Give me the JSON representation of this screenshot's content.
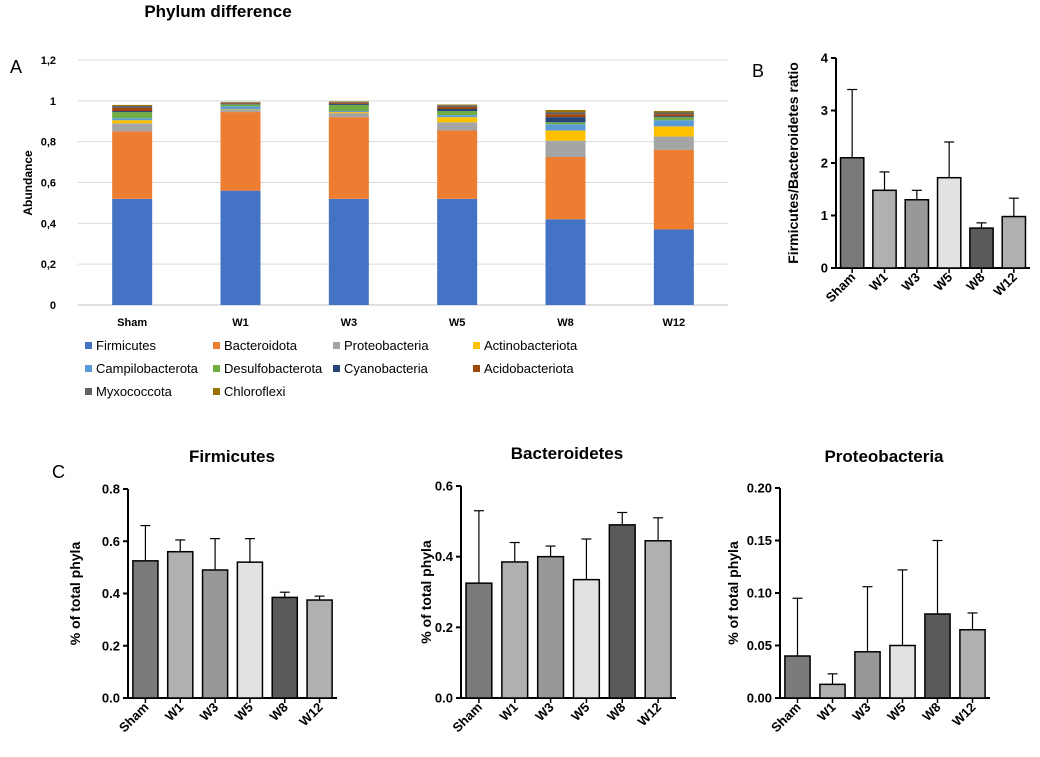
{
  "figure": {
    "panel_labels": {
      "a": "A",
      "b": "B",
      "c": "C"
    }
  },
  "chart_data": [
    {
      "id": "A",
      "type": "bar",
      "stacked": true,
      "title": "Phylum difference",
      "xlabel": "",
      "ylabel": "Abundance",
      "ylim": [
        0,
        1.2
      ],
      "yticks": [
        0,
        0.2,
        0.4,
        0.6,
        0.8,
        1,
        1.2
      ],
      "ytick_labels": [
        "0",
        "0,2",
        "0,4",
        "0,6",
        "0,8",
        "1",
        "1,2"
      ],
      "grid": true,
      "legend_position": "bottom",
      "categories": [
        "Sham",
        "W1",
        "W3",
        "W5",
        "W8",
        "W12"
      ],
      "series": [
        {
          "name": "Firmicutes",
          "color": "#4472C4",
          "values": [
            0.52,
            0.56,
            0.52,
            0.52,
            0.42,
            0.37
          ]
        },
        {
          "name": "Bacteroidota",
          "color": "#ED7D31",
          "values": [
            0.33,
            0.385,
            0.4,
            0.335,
            0.305,
            0.39
          ]
        },
        {
          "name": "Proteobacteria",
          "color": "#A5A5A5",
          "values": [
            0.04,
            0.01,
            0.02,
            0.04,
            0.08,
            0.065
          ]
        },
        {
          "name": "Actinobacteriota",
          "color": "#FFC000",
          "values": [
            0.015,
            0.003,
            0.005,
            0.025,
            0.05,
            0.05
          ]
        },
        {
          "name": "Campilobacterota",
          "color": "#5B9BD5",
          "values": [
            0.01,
            0.015,
            0.005,
            0.01,
            0.03,
            0.03
          ]
        },
        {
          "name": "Desulfobacterota",
          "color": "#70AD47",
          "values": [
            0.03,
            0.01,
            0.03,
            0.02,
            0.01,
            0.015
          ]
        },
        {
          "name": "Cyanobacteria",
          "color": "#264478",
          "values": [
            0.005,
            0.003,
            0.005,
            0.01,
            0.025,
            0.005
          ]
        },
        {
          "name": "Acidobacteriota",
          "color": "#9E480E",
          "values": [
            0.015,
            0.004,
            0.005,
            0.01,
            0.015,
            0.01
          ]
        },
        {
          "name": "Myxococcota",
          "color": "#636363",
          "values": [
            0.01,
            0.003,
            0.004,
            0.008,
            0.01,
            0.008
          ]
        },
        {
          "name": "Chloroflexi",
          "color": "#997300",
          "values": [
            0.005,
            0.002,
            0.003,
            0.004,
            0.01,
            0.007
          ]
        }
      ]
    },
    {
      "id": "B",
      "type": "bar",
      "title": "",
      "xlabel": "",
      "ylabel": "Firmicutes/Bacteroidetes ratio",
      "ylim": [
        0,
        4
      ],
      "yticks": [
        0,
        1,
        2,
        3,
        4
      ],
      "ytick_labels": [
        "0",
        "1",
        "2",
        "3",
        "4"
      ],
      "grid": false,
      "categories": [
        "Sham",
        "W1",
        "W3",
        "W5",
        "W8",
        "W12"
      ],
      "values": [
        2.1,
        1.48,
        1.3,
        1.72,
        0.76,
        0.98
      ],
      "errors": [
        1.3,
        0.35,
        0.18,
        0.68,
        0.1,
        0.35
      ],
      "colors": [
        "#7a7a7a",
        "#b0b0b0",
        "#989898",
        "#e2e2e2",
        "#5a5a5a",
        "#b0b0b0"
      ]
    },
    {
      "id": "C1",
      "type": "bar",
      "title": "Firmicutes",
      "xlabel": "",
      "ylabel": "% of total phyla",
      "ylim": [
        0,
        0.8
      ],
      "yticks": [
        0,
        0.2,
        0.4,
        0.6,
        0.8
      ],
      "ytick_labels": [
        "0.0",
        "0.2",
        "0.4",
        "0.6",
        "0.8"
      ],
      "grid": false,
      "categories": [
        "Sham",
        "W1",
        "W3",
        "W5",
        "W8",
        "W12"
      ],
      "values": [
        0.525,
        0.56,
        0.49,
        0.52,
        0.385,
        0.375
      ],
      "errors": [
        0.135,
        0.045,
        0.12,
        0.09,
        0.02,
        0.015
      ],
      "colors": [
        "#7a7a7a",
        "#b0b0b0",
        "#989898",
        "#e2e2e2",
        "#5a5a5a",
        "#b0b0b0"
      ]
    },
    {
      "id": "C2",
      "type": "bar",
      "title": "Bacteroidetes",
      "xlabel": "",
      "ylabel": "% of total phyla",
      "ylim": [
        0,
        0.6
      ],
      "yticks": [
        0,
        0.2,
        0.4,
        0.6
      ],
      "ytick_labels": [
        "0.0",
        "0.2",
        "0.4",
        "0.6"
      ],
      "grid": false,
      "categories": [
        "Sham",
        "W1",
        "W3",
        "W5",
        "W8",
        "W12"
      ],
      "values": [
        0.325,
        0.385,
        0.4,
        0.335,
        0.49,
        0.445
      ],
      "errors": [
        0.205,
        0.055,
        0.03,
        0.115,
        0.035,
        0.065
      ],
      "colors": [
        "#7a7a7a",
        "#b0b0b0",
        "#989898",
        "#e2e2e2",
        "#5a5a5a",
        "#b0b0b0"
      ]
    },
    {
      "id": "C3",
      "type": "bar",
      "title": "Proteobacteria",
      "xlabel": "",
      "ylabel": "% of total phyla",
      "ylim": [
        0,
        0.2
      ],
      "yticks": [
        0,
        0.05,
        0.1,
        0.15,
        0.2
      ],
      "ytick_labels": [
        "0.00",
        "0.05",
        "0.10",
        "0.15",
        "0.20"
      ],
      "grid": false,
      "categories": [
        "Sham",
        "W1",
        "W3",
        "W5",
        "W8",
        "W12"
      ],
      "values": [
        0.04,
        0.013,
        0.044,
        0.05,
        0.08,
        0.065
      ],
      "errors": [
        0.055,
        0.01,
        0.062,
        0.072,
        0.07,
        0.016
      ],
      "colors": [
        "#7a7a7a",
        "#b0b0b0",
        "#989898",
        "#e2e2e2",
        "#5a5a5a",
        "#b0b0b0"
      ]
    }
  ]
}
